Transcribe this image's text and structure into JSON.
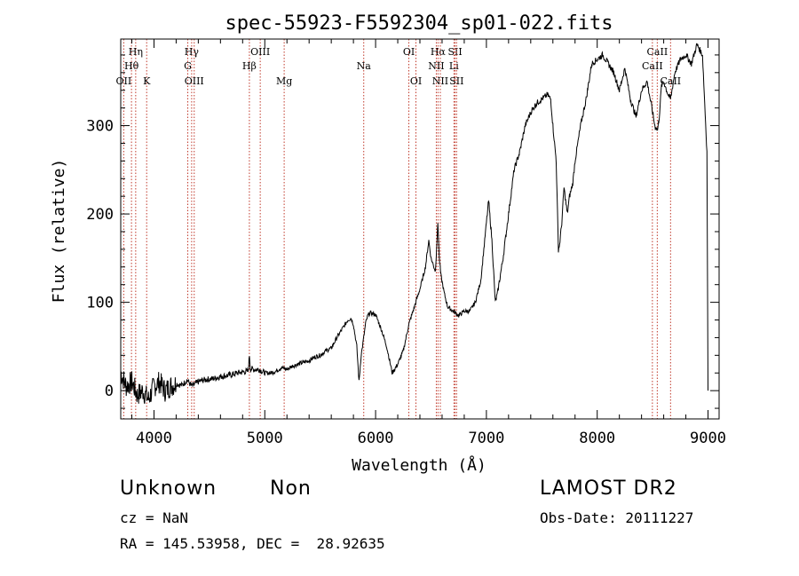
{
  "chart_data": {
    "type": "line",
    "title": "spec-55923-F5592304_sp01-022.fits",
    "xlabel": "Wavelength (Å)",
    "ylabel": "Flux (relative)",
    "xlim": [
      3700,
      9100
    ],
    "ylim": [
      -32,
      398
    ],
    "xticks": [
      4000,
      5000,
      6000,
      7000,
      8000,
      9000
    ],
    "yticks": [
      0,
      100,
      200,
      300
    ],
    "grid": false,
    "legend": "none",
    "series": [
      {
        "name": "spectrum",
        "x": [
          3700,
          3750,
          3800,
          3850,
          3900,
          3950,
          4000,
          4050,
          4100,
          4150,
          4200,
          4250,
          4300,
          4340,
          4400,
          4450,
          4500,
          4550,
          4600,
          4650,
          4700,
          4750,
          4800,
          4850,
          4862,
          4870,
          4900,
          4950,
          5000,
          5050,
          5100,
          5150,
          5200,
          5250,
          5300,
          5350,
          5400,
          5450,
          5500,
          5550,
          5600,
          5650,
          5700,
          5750,
          5780,
          5800,
          5830,
          5850,
          5870,
          5893,
          5910,
          5930,
          5950,
          6000,
          6050,
          6100,
          6150,
          6200,
          6250,
          6300,
          6350,
          6400,
          6450,
          6480,
          6500,
          6540,
          6562,
          6575,
          6590,
          6620,
          6650,
          6700,
          6750,
          6800,
          6850,
          6900,
          6950,
          7000,
          7020,
          7050,
          7080,
          7100,
          7150,
          7200,
          7250,
          7300,
          7350,
          7400,
          7450,
          7500,
          7550,
          7580,
          7600,
          7630,
          7650,
          7660,
          7680,
          7700,
          7730,
          7750,
          7780,
          7800,
          7850,
          7900,
          7950,
          8000,
          8050,
          8100,
          8150,
          8200,
          8250,
          8300,
          8350,
          8400,
          8450,
          8500,
          8520,
          8545,
          8560,
          8580,
          8600,
          8640,
          8662,
          8700,
          8750,
          8800,
          8850,
          8900,
          8950,
          8990,
          9000
        ],
        "values": [
          20,
          5,
          10,
          -5,
          0,
          -10,
          5,
          10,
          0,
          5,
          8,
          6,
          12,
          5,
          10,
          12,
          13,
          14,
          16,
          17,
          18,
          20,
          21,
          22,
          40,
          25,
          24,
          24,
          20,
          20,
          22,
          26,
          24,
          28,
          30,
          32,
          34,
          38,
          40,
          45,
          48,
          60,
          70,
          80,
          82,
          75,
          50,
          10,
          40,
          60,
          76,
          85,
          88,
          86,
          70,
          50,
          20,
          30,
          45,
          75,
          95,
          115,
          140,
          170,
          150,
          135,
          190,
          150,
          130,
          110,
          95,
          90,
          85,
          90,
          90,
          100,
          125,
          190,
          215,
          170,
          100,
          110,
          150,
          200,
          250,
          270,
          300,
          315,
          325,
          330,
          335,
          330,
          300,
          260,
          160,
          165,
          190,
          230,
          200,
          220,
          235,
          260,
          300,
          330,
          370,
          375,
          380,
          370,
          360,
          340,
          365,
          330,
          310,
          340,
          350,
          315,
          300,
          295,
          310,
          345,
          350,
          335,
          330,
          360,
          375,
          380,
          370,
          392,
          380,
          270,
          0
        ]
      }
    ],
    "line_markers": [
      {
        "label": "Hη",
        "wavelength": 3835,
        "row": 0
      },
      {
        "label": "Hθ",
        "wavelength": 3797,
        "row": 1
      },
      {
        "label": "OII",
        "wavelength": 3727,
        "row": 2
      },
      {
        "label": "K",
        "wavelength": 3934,
        "row": 2
      },
      {
        "label": "Hγ",
        "wavelength": 4340,
        "row": 0
      },
      {
        "label": "G",
        "wavelength": 4305,
        "row": 1
      },
      {
        "label": "OIII",
        "wavelength": 4363,
        "row": 2
      },
      {
        "label": "OIII",
        "wavelength": 4959,
        "row": 0
      },
      {
        "label": "Hβ",
        "wavelength": 4861,
        "row": 1
      },
      {
        "label": "Mg",
        "wavelength": 5175,
        "row": 2
      },
      {
        "label": "Na",
        "wavelength": 5893,
        "row": 1
      },
      {
        "label": "OI",
        "wavelength": 6300,
        "row": 0
      },
      {
        "label": "OI",
        "wavelength": 6364,
        "row": 2
      },
      {
        "label": "Hα",
        "wavelength": 6563,
        "row": 0
      },
      {
        "label": "NII",
        "wavelength": 6548,
        "row": 1
      },
      {
        "label": "NII",
        "wavelength": 6584,
        "row": 2
      },
      {
        "label": "SII",
        "wavelength": 6717,
        "row": 0
      },
      {
        "label": "Li",
        "wavelength": 6707,
        "row": 1
      },
      {
        "label": "SII",
        "wavelength": 6731,
        "row": 2
      },
      {
        "label": "CaII",
        "wavelength": 8542,
        "row": 0
      },
      {
        "label": "CaII",
        "wavelength": 8498,
        "row": 1
      },
      {
        "label": "CaII",
        "wavelength": 8662,
        "row": 2
      }
    ]
  },
  "info": {
    "class_label": "Unknown",
    "subclass_label": "Non",
    "survey": "LAMOST DR2",
    "cz_line": "cz = NaN",
    "obs_date_line": "Obs-Date: 20111227",
    "coords_line": "RA = 145.53958, DEC =  28.92635"
  }
}
